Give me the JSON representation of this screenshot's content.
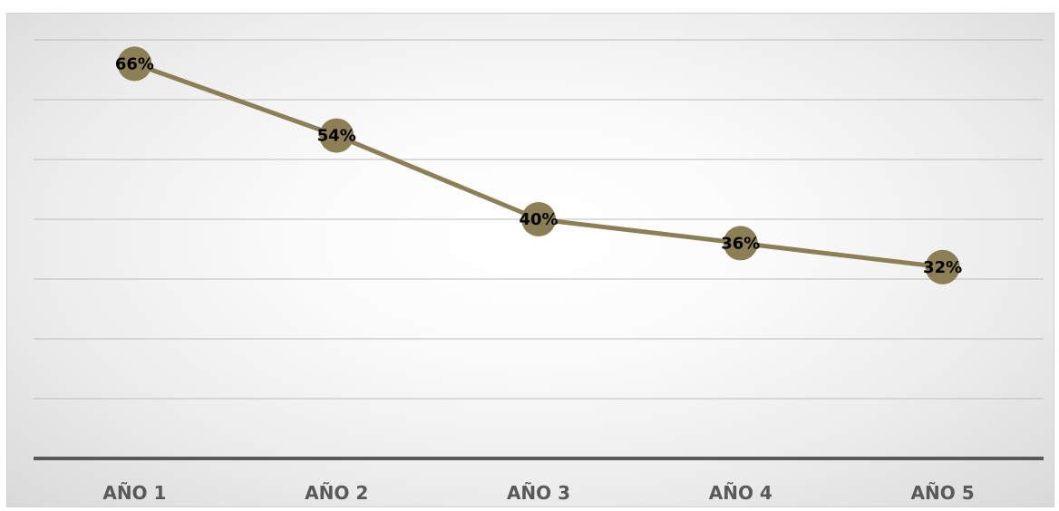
{
  "chart_data": {
    "type": "line",
    "categories": [
      "AÑO 1",
      "AÑO 2",
      "AÑO 3",
      "AÑO 4",
      "AÑO 5"
    ],
    "series": [
      {
        "values": [
          66,
          54,
          40,
          36,
          32
        ],
        "data_labels": [
          "66%",
          "54%",
          "40%",
          "36%",
          "32%"
        ],
        "color": "#8c7f56"
      }
    ],
    "ylim": [
      0,
      70
    ],
    "grid": true,
    "legend": "none",
    "title": "",
    "xlabel": "",
    "ylabel": ""
  }
}
